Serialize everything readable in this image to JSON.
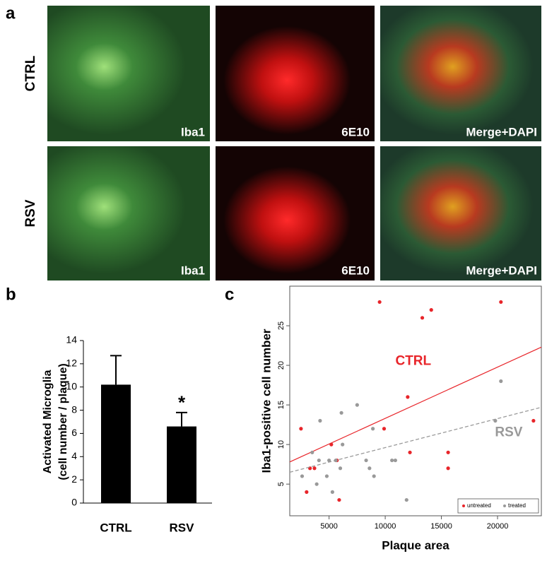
{
  "panel_a": {
    "label": "a",
    "rows": [
      "CTRL",
      "RSV"
    ],
    "image_labels": [
      [
        "Iba1",
        "6E10",
        "Merge+DAPI"
      ],
      [
        "Iba1",
        "6E10",
        "Merge+DAPI"
      ]
    ]
  },
  "chart_data": [
    {
      "type": "bar",
      "label": "b",
      "ylabel": [
        "Activated Microglia",
        "(cell number / plaque)"
      ],
      "categories": [
        "CTRL",
        "RSV"
      ],
      "values": [
        10.2,
        6.6
      ],
      "errors": [
        2.5,
        1.2
      ],
      "color": "#000000",
      "ylim": [
        0,
        14
      ],
      "yticks": [
        0,
        2,
        4,
        6,
        8,
        10,
        12,
        14
      ],
      "annotations": [
        {
          "category": 1,
          "text": "*"
        }
      ]
    },
    {
      "type": "scatter",
      "label": "c",
      "xlabel": "Plaque area",
      "ylabel": "Iba1-positive cell number",
      "xlim": [
        1500,
        23900
      ],
      "ylim": [
        1,
        30
      ],
      "xticks": [
        5000,
        10000,
        15000,
        20000
      ],
      "yticks": [
        5,
        10,
        15,
        20,
        25
      ],
      "legend": "lower right",
      "series": [
        {
          "name": "untreated",
          "color": "#e8252a",
          "dash": false,
          "annotation": "CTRL",
          "x": [
            2500,
            3000,
            3300,
            3700,
            5200,
            5700,
            5900,
            9500,
            9900,
            12000,
            12200,
            13300,
            14100,
            15600,
            15600,
            20300,
            23200
          ],
          "values": [
            12,
            4,
            7,
            7,
            10,
            8,
            3,
            28,
            12,
            16,
            9,
            26,
            27,
            9,
            7,
            28,
            13
          ],
          "fit_x": [
            1500,
            23900
          ],
          "fit_values": [
            7.8,
            22.3
          ]
        },
        {
          "name": "treated",
          "color": "#999999",
          "dash": true,
          "annotation": "RSV",
          "x": [
            2600,
            3500,
            3900,
            4100,
            4200,
            4800,
            5000,
            5300,
            5600,
            6000,
            6100,
            6200,
            7500,
            8300,
            8600,
            8900,
            9000,
            10600,
            10900,
            11900,
            19800,
            20300
          ],
          "values": [
            6,
            9,
            5,
            8,
            13,
            6,
            8,
            4,
            8,
            7,
            14,
            10,
            15,
            8,
            7,
            12,
            6,
            8,
            8,
            3,
            13,
            18
          ],
          "fit_x": [
            1500,
            23900
          ],
          "fit_values": [
            6.5,
            14.7
          ]
        }
      ]
    }
  ]
}
